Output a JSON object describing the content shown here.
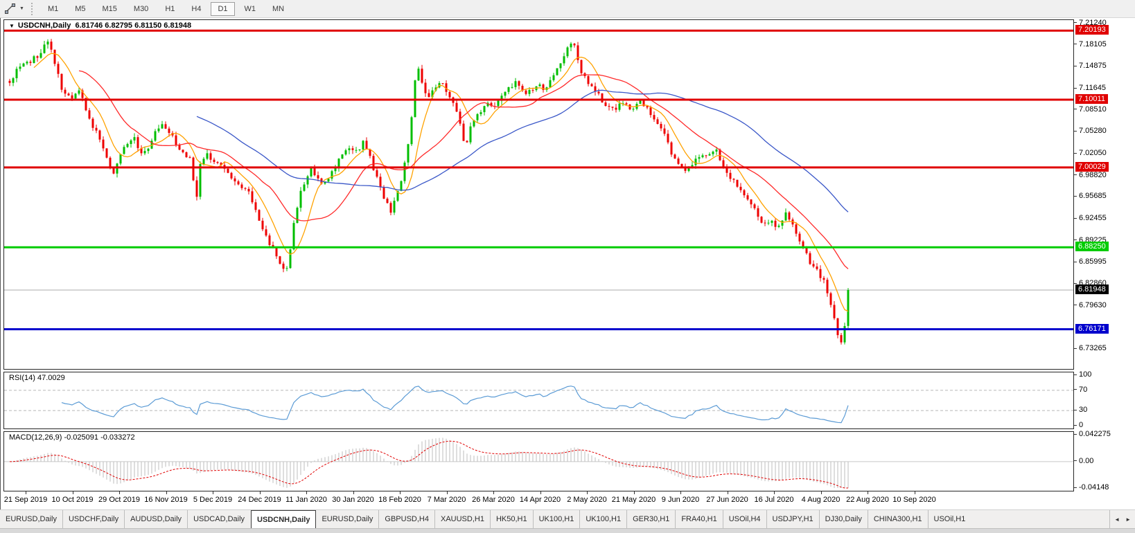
{
  "toolbar": {
    "timeframes": [
      "M1",
      "M5",
      "M15",
      "M30",
      "H1",
      "H4",
      "D1",
      "W1",
      "MN"
    ],
    "active_timeframe": "D1"
  },
  "icons": {
    "symbol_caret": "▼",
    "toolbar_caret": "▼",
    "tab_scroll_left": "◄",
    "tab_scroll_right": "►"
  },
  "chart": {
    "symbol_title": "USDCNH,Daily",
    "ohlc_text": "6.81746 6.82795 6.81150 6.81948",
    "price_axis": {
      "top_price": 7.2175,
      "bottom_price": 6.7032,
      "ticks": [
        "7.21240",
        "7.18105",
        "7.14875",
        "7.11645",
        "7.08510",
        "7.05280",
        "7.02050",
        "6.98820",
        "6.95685",
        "6.92455",
        "6.89225",
        "6.85995",
        "6.82860",
        "6.79630",
        "6.73265"
      ]
    },
    "levels": [
      {
        "price": 7.20193,
        "label": "7.20193",
        "color": "#e00000",
        "width": 3
      },
      {
        "price": 7.10011,
        "label": "7.10011",
        "color": "#e00000",
        "width": 3
      },
      {
        "price": 7.00029,
        "label": "7.00029",
        "color": "#e00000",
        "width": 3
      },
      {
        "price": 6.8825,
        "label": "6.88250",
        "color": "#00cc00",
        "width": 3
      },
      {
        "price": 6.76171,
        "label": "6.76171",
        "color": "#0000cc",
        "width": 3
      }
    ],
    "current_price": {
      "price": 6.81948,
      "label": "6.81948",
      "line_color": "#ababab",
      "badge_bg": "#000000"
    },
    "colors": {
      "up": "#00bE00",
      "down": "#ee0000",
      "ma_fast": "#ffa200",
      "ma_mid": "#ff2a2a",
      "ma_slow": "#3a57c8"
    },
    "price_path": [
      [
        8,
        7.125
      ],
      [
        20,
        7.145
      ],
      [
        35,
        7.155
      ],
      [
        50,
        7.165
      ],
      [
        62,
        7.185
      ],
      [
        72,
        7.16
      ],
      [
        82,
        7.12
      ],
      [
        95,
        7.1
      ],
      [
        110,
        7.115
      ],
      [
        122,
        7.07
      ],
      [
        135,
        7.05
      ],
      [
        148,
        7.015
      ],
      [
        158,
        6.995
      ],
      [
        168,
        7.02
      ],
      [
        178,
        7.035
      ],
      [
        188,
        7.045
      ],
      [
        198,
        7.02
      ],
      [
        208,
        7.03
      ],
      [
        218,
        7.055
      ],
      [
        230,
        7.065
      ],
      [
        242,
        7.045
      ],
      [
        252,
        7.03
      ],
      [
        262,
        7.02
      ],
      [
        272,
        7.005
      ],
      [
        276,
        6.925
      ],
      [
        281,
        7.0
      ],
      [
        292,
        7.02
      ],
      [
        304,
        7.01
      ],
      [
        316,
        7.0
      ],
      [
        328,
        6.985
      ],
      [
        340,
        6.975
      ],
      [
        352,
        6.965
      ],
      [
        362,
        6.94
      ],
      [
        372,
        6.915
      ],
      [
        382,
        6.89
      ],
      [
        392,
        6.87
      ],
      [
        400,
        6.855
      ],
      [
        408,
        6.85
      ],
      [
        414,
        6.89
      ],
      [
        420,
        6.93
      ],
      [
        428,
        6.965
      ],
      [
        436,
        6.985
      ],
      [
        444,
        7.0
      ],
      [
        452,
        6.985
      ],
      [
        460,
        6.975
      ],
      [
        470,
        6.985
      ],
      [
        480,
        7.005
      ],
      [
        490,
        7.02
      ],
      [
        500,
        7.03
      ],
      [
        510,
        7.025
      ],
      [
        518,
        7.04
      ],
      [
        528,
        7.015
      ],
      [
        538,
        6.985
      ],
      [
        548,
        6.955
      ],
      [
        558,
        6.935
      ],
      [
        566,
        6.955
      ],
      [
        574,
        6.985
      ],
      [
        582,
        7.03
      ],
      [
        590,
        7.09
      ],
      [
        596,
        7.16
      ],
      [
        602,
        7.125
      ],
      [
        610,
        7.1
      ],
      [
        618,
        7.11
      ],
      [
        626,
        7.125
      ],
      [
        634,
        7.12
      ],
      [
        642,
        7.105
      ],
      [
        650,
        7.09
      ],
      [
        658,
        7.065
      ],
      [
        665,
        7.03
      ],
      [
        672,
        7.055
      ],
      [
        680,
        7.075
      ],
      [
        690,
        7.085
      ],
      [
        700,
        7.095
      ],
      [
        710,
        7.09
      ],
      [
        720,
        7.105
      ],
      [
        730,
        7.12
      ],
      [
        740,
        7.125
      ],
      [
        750,
        7.11
      ],
      [
        760,
        7.115
      ],
      [
        770,
        7.125
      ],
      [
        780,
        7.115
      ],
      [
        790,
        7.13
      ],
      [
        800,
        7.15
      ],
      [
        810,
        7.17
      ],
      [
        820,
        7.19
      ],
      [
        828,
        7.155
      ],
      [
        836,
        7.135
      ],
      [
        846,
        7.12
      ],
      [
        856,
        7.11
      ],
      [
        866,
        7.095
      ],
      [
        876,
        7.085
      ],
      [
        886,
        7.09
      ],
      [
        896,
        7.1
      ],
      [
        906,
        7.085
      ],
      [
        916,
        7.1
      ],
      [
        926,
        7.09
      ],
      [
        936,
        7.075
      ],
      [
        946,
        7.06
      ],
      [
        956,
        7.04
      ],
      [
        966,
        7.015
      ],
      [
        976,
        7.0
      ],
      [
        986,
        6.995
      ],
      [
        996,
        7.01
      ],
      [
        1006,
        7.02
      ],
      [
        1016,
        7.02
      ],
      [
        1026,
        7.03
      ],
      [
        1036,
        7.005
      ],
      [
        1046,
        6.99
      ],
      [
        1056,
        6.975
      ],
      [
        1066,
        6.962
      ],
      [
        1076,
        6.95
      ],
      [
        1086,
        6.935
      ],
      [
        1096,
        6.915
      ],
      [
        1106,
        6.925
      ],
      [
        1116,
        6.905
      ],
      [
        1126,
        6.935
      ],
      [
        1136,
        6.92
      ],
      [
        1146,
        6.9
      ],
      [
        1156,
        6.875
      ],
      [
        1166,
        6.855
      ],
      [
        1176,
        6.845
      ],
      [
        1186,
        6.825
      ],
      [
        1192,
        6.8
      ],
      [
        1198,
        6.775
      ],
      [
        1204,
        6.748
      ],
      [
        1210,
        6.738
      ],
      [
        1214,
        6.775
      ],
      [
        1218,
        6.8195
      ]
    ]
  },
  "rsi": {
    "label": "RSI(14) 47.0029",
    "ticks": [
      {
        "value": 100,
        "label": "100"
      },
      {
        "value": 70,
        "label": "70"
      },
      {
        "value": 30,
        "label": "30"
      },
      {
        "value": 0,
        "label": "0"
      }
    ],
    "dashed_levels": [
      70,
      30
    ],
    "max": 100,
    "min": 0,
    "color": "#5b9bd5"
  },
  "macd": {
    "label": "MACD(12,26,9) -0.025091 -0.033272",
    "ticks": [
      {
        "value": 0.042275,
        "label": "0.042275"
      },
      {
        "value": 0.0,
        "label": "0.00"
      },
      {
        "value": -0.04148,
        "label": "-0.04148"
      }
    ],
    "max": 0.042275,
    "min": -0.04148,
    "hist_color": "#bdbdbd",
    "signal_color": "#e00000",
    "zero_color": "#c8c8c8"
  },
  "date_axis": {
    "labels": [
      "21 Sep 2019",
      "10 Oct 2019",
      "29 Oct 2019",
      "16 Nov 2019",
      "5 Dec 2019",
      "24 Dec 2019",
      "11 Jan 2020",
      "30 Jan 2020",
      "18 Feb 2020",
      "7 Mar 2020",
      "26 Mar 2020",
      "14 Apr 2020",
      "2 May 2020",
      "21 May 2020",
      "9 Jun 2020",
      "27 Jun 2020",
      "16 Jul 2020",
      "4 Aug 2020",
      "22 Aug 2020",
      "10 Sep 2020"
    ]
  },
  "tab_bar": {
    "active_index": 4,
    "tabs": [
      "EURUSD,Daily",
      "USDCHF,Daily",
      "AUDUSD,Daily",
      "USDCAD,Daily",
      "USDCNH,Daily",
      "EURUSD,Daily",
      "GBPUSD,H4",
      "XAUUSD,H1",
      "HK50,H1",
      "UK100,H1",
      "UK100,H1",
      "GER30,H1",
      "FRA40,H1",
      "USOil,H4",
      "USDJPY,H1",
      "DJ30,Daily",
      "CHINA300,H1",
      "USOil,H1"
    ]
  }
}
